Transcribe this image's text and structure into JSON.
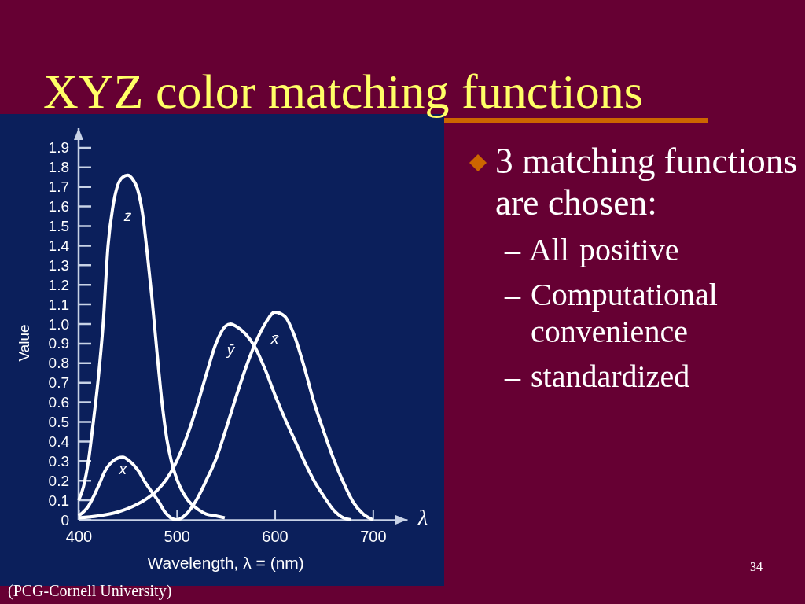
{
  "chart_data": [
    {
      "type": "line",
      "title": "XYZ color matching functions",
      "xlabel": "Wavelength, λ = (nm)",
      "ylabel": "Value",
      "xlim": [
        400,
        735
      ],
      "ylim": [
        0,
        2
      ],
      "xticks": [
        400,
        500,
        600,
        700
      ],
      "yticks": [
        0,
        0.1,
        0.2,
        0.3,
        0.4,
        0.5,
        0.6,
        0.7,
        0.8,
        0.9,
        {
          "value": 1,
          "label": "1.0"
        },
        1.1,
        1.2,
        1.3,
        1.4,
        1.5,
        1.6,
        1.7,
        1.8,
        1.9
      ],
      "line_style": "solid",
      "series": [
        {
          "name": "z̄",
          "color": "#ffffff",
          "x": [
            400,
            405,
            410,
            415,
            420,
            425,
            430,
            435,
            440,
            445,
            450,
            455,
            460,
            465,
            470,
            475,
            480,
            485,
            490,
            495,
            500,
            510,
            520,
            530,
            540,
            549
          ],
          "values": [
            0.1,
            0.17,
            0.3,
            0.5,
            0.72,
            1.0,
            1.4,
            1.6,
            1.71,
            1.75,
            1.76,
            1.74,
            1.69,
            1.57,
            1.36,
            1.12,
            0.85,
            0.6,
            0.41,
            0.29,
            0.21,
            0.11,
            0.06,
            0.03,
            0.02,
            0.01
          ]
        },
        {
          "name": "ȳ",
          "color": "#ffffff",
          "x": [
            400,
            420,
            440,
            460,
            470,
            480,
            490,
            500,
            510,
            520,
            530,
            540,
            550,
            555,
            560,
            570,
            580,
            590,
            600,
            610,
            620,
            630,
            640,
            650,
            660,
            670,
            678
          ],
          "values": [
            0.01,
            0.02,
            0.04,
            0.08,
            0.11,
            0.15,
            0.21,
            0.3,
            0.42,
            0.57,
            0.74,
            0.9,
            0.99,
            1.0,
            0.99,
            0.95,
            0.88,
            0.77,
            0.64,
            0.52,
            0.41,
            0.3,
            0.2,
            0.12,
            0.05,
            0.01,
            0.0
          ]
        },
        {
          "name": "x̄",
          "color": "#ffffff",
          "x": [
            400,
            410,
            420,
            427,
            435,
            445,
            452,
            461,
            468,
            475,
            482,
            488,
            494,
            500,
            510,
            520,
            530,
            540,
            550,
            560,
            570,
            580,
            590,
            600,
            610,
            620,
            630,
            640,
            650,
            660,
            670,
            680,
            690,
            700
          ],
          "values": [
            0.02,
            0.07,
            0.17,
            0.25,
            0.3,
            0.32,
            0.3,
            0.25,
            0.19,
            0.14,
            0.09,
            0.04,
            0.01,
            0.0,
            0.03,
            0.1,
            0.2,
            0.31,
            0.46,
            0.62,
            0.77,
            0.9,
            1.0,
            1.06,
            1.04,
            0.94,
            0.78,
            0.6,
            0.45,
            0.31,
            0.19,
            0.09,
            0.03,
            0.0
          ]
        }
      ],
      "annotations": [
        "λ",
        "(PCG-Cornell University)",
        "34"
      ]
    },
    {
      "type": "other",
      "title": "3 matching functions are chosen:",
      "annotations": [
        "– All positive",
        "– Computational convenience",
        "– standardized"
      ]
    }
  ]
}
